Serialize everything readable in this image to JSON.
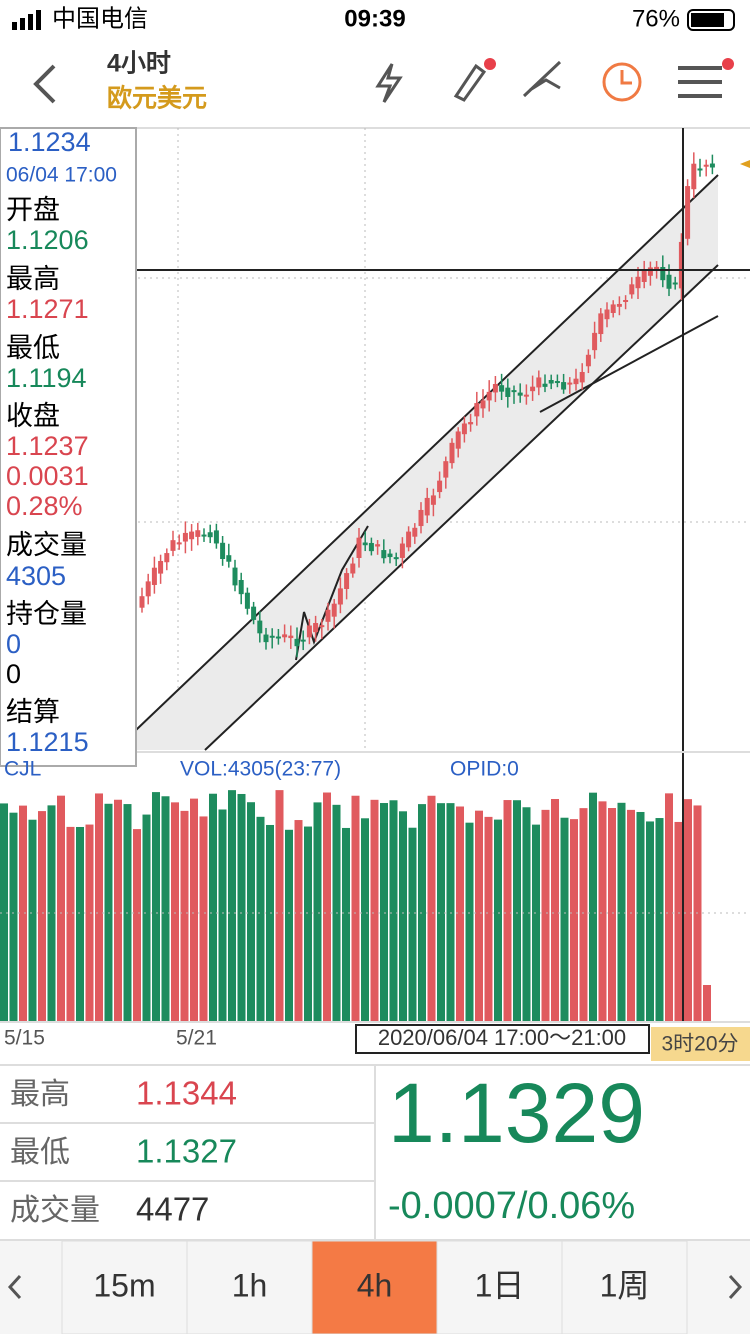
{
  "status_bar": {
    "carrier": "中国电信",
    "time": "09:39",
    "battery": "76%"
  },
  "header": {
    "period": "4小时",
    "symbol": "欧元美元"
  },
  "info_panel": {
    "price": "1.1234",
    "datetime": "06/04 17:00",
    "open_label": "开盘",
    "open": "1.1206",
    "high_label": "最高",
    "high": "1.1271",
    "low_label": "最低",
    "low": "1.1194",
    "close_label": "收盘",
    "close": "1.1237",
    "change": "0.0031",
    "change_pct": "0.28%",
    "volume_label": "成交量",
    "volume": "4305",
    "oi_label": "持仓量",
    "oi": "0",
    "oi_change": "0",
    "settle_label": "结算",
    "settle": "1.1215"
  },
  "volume_header": {
    "name": "CJL",
    "vol": "VOL:4305(23:77)",
    "opid": "OPID:0"
  },
  "x_labels": [
    "5/15",
    "5/21"
  ],
  "crosshair_time": "2020/06/04 17:00～21:00",
  "countdown": "3时20分",
  "quote": {
    "high_label": "最高",
    "high": "1.1344",
    "low_label": "最低",
    "low": "1.1327",
    "volume_label": "成交量",
    "volume": "4477",
    "price": "1.1329",
    "change": "-0.0007/0.06%"
  },
  "tabs": [
    "15m",
    "1h",
    "4h",
    "1日",
    "1周"
  ],
  "active_tab": 2
}
